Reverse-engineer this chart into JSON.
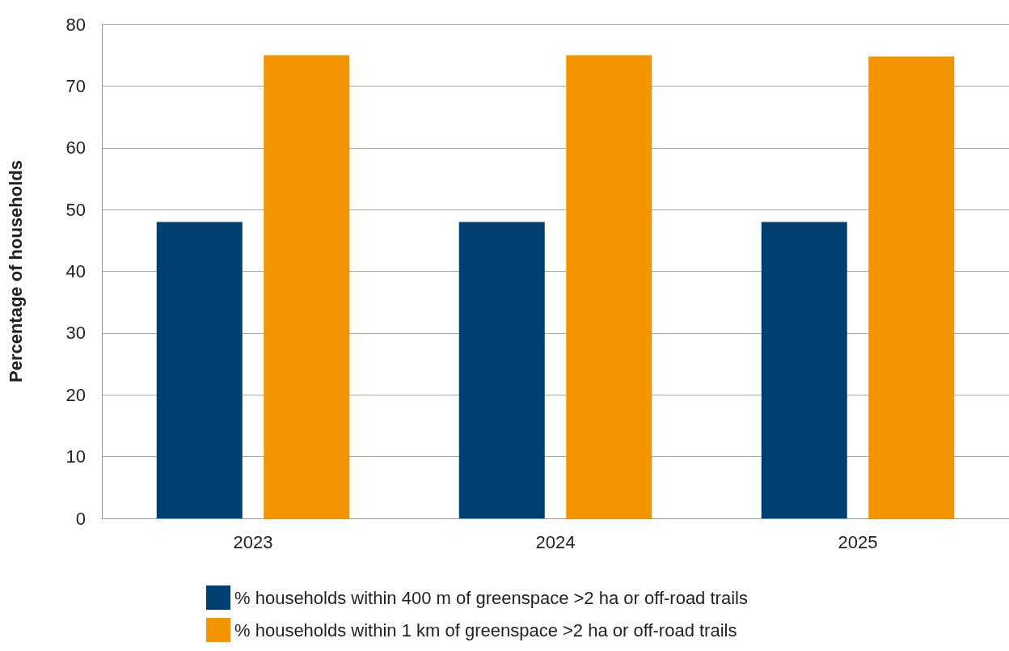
{
  "chart_data": {
    "type": "bar",
    "ylabel": "Percentage of households",
    "categories": [
      "2023",
      "2024",
      "2025"
    ],
    "series": [
      {
        "name": "% households within 400 m of greenspace >2 ha or off-road trails",
        "color": "#003f72",
        "values": [
          48,
          48,
          48
        ]
      },
      {
        "name": "% households within 1 km of greenspace >2 ha or off-road trails",
        "color": "#f39501",
        "values": [
          75,
          75,
          74.8
        ]
      }
    ],
    "ylim": [
      0,
      80
    ],
    "yticks": [
      0,
      10,
      20,
      30,
      40,
      50,
      60,
      70,
      80
    ],
    "grid": "y",
    "legend": "bottom"
  }
}
